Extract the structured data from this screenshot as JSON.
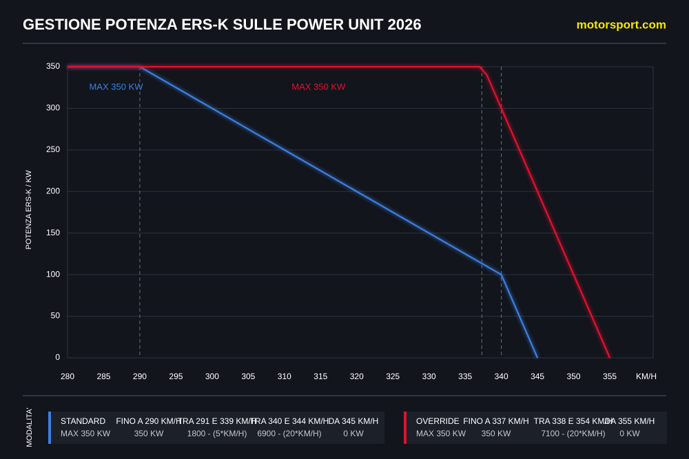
{
  "chart_data": {
    "type": "line",
    "title": "GESTIONE POTENZA ERS-K SULLE POWER UNIT 2026",
    "brand": "motorsport.com",
    "y_label": "POTENZA ERS-K / KW",
    "x_label": "KM/H",
    "xlim": [
      280,
      361
    ],
    "ylim": [
      0,
      350
    ],
    "xticks": [
      280,
      285,
      290,
      295,
      300,
      305,
      310,
      315,
      320,
      325,
      330,
      335,
      340,
      345,
      350,
      355
    ],
    "yticks": [
      0,
      50,
      100,
      150,
      200,
      250,
      300,
      350
    ],
    "grid": true,
    "markers": [
      290,
      337.3,
      340
    ],
    "series": [
      {
        "name": "STANDARD",
        "color": "#3d7fe0",
        "x": [
          280,
          290,
          291,
          339,
          340,
          344,
          345
        ],
        "values": [
          350,
          350,
          345,
          105,
          100,
          20,
          0
        ]
      },
      {
        "name": "OVERRIDE",
        "color": "#e3102e",
        "x": [
          280,
          337,
          338,
          354,
          355
        ],
        "values": [
          350,
          350,
          340,
          20,
          0
        ]
      }
    ],
    "annotations": [
      {
        "text": "MAX 350 KW",
        "series": 0,
        "x": 283,
        "y": 325
      },
      {
        "text": "MAX 350 KW",
        "series": 1,
        "x": 311,
        "y": 325
      }
    ]
  },
  "legend": {
    "title": "MODALITA'",
    "modes": [
      {
        "name": "STANDARD",
        "max": "MAX 350 KW",
        "columns": [
          {
            "head": "FINO A 290 KM/H",
            "body": "350 KW"
          },
          {
            "head": "TRA 291 E 339 KM/H",
            "body": "1800 - (5*KM/H)"
          },
          {
            "head": "TRA 340 E 344 KM/H",
            "body": "6900 - (20*KM/H)"
          },
          {
            "head": "DA 345 KM/H",
            "body": "0 KW"
          }
        ]
      },
      {
        "name": "OVERRIDE",
        "max": "MAX 350 KW",
        "columns": [
          {
            "head": "FINO A 337 KM/H",
            "body": "350 KW"
          },
          {
            "head": "TRA 338 E 354 KM/H",
            "body": "7100 - (20*KM/H)"
          },
          {
            "head": "DA 355 KM/H",
            "body": "0 KW"
          }
        ]
      }
    ]
  }
}
